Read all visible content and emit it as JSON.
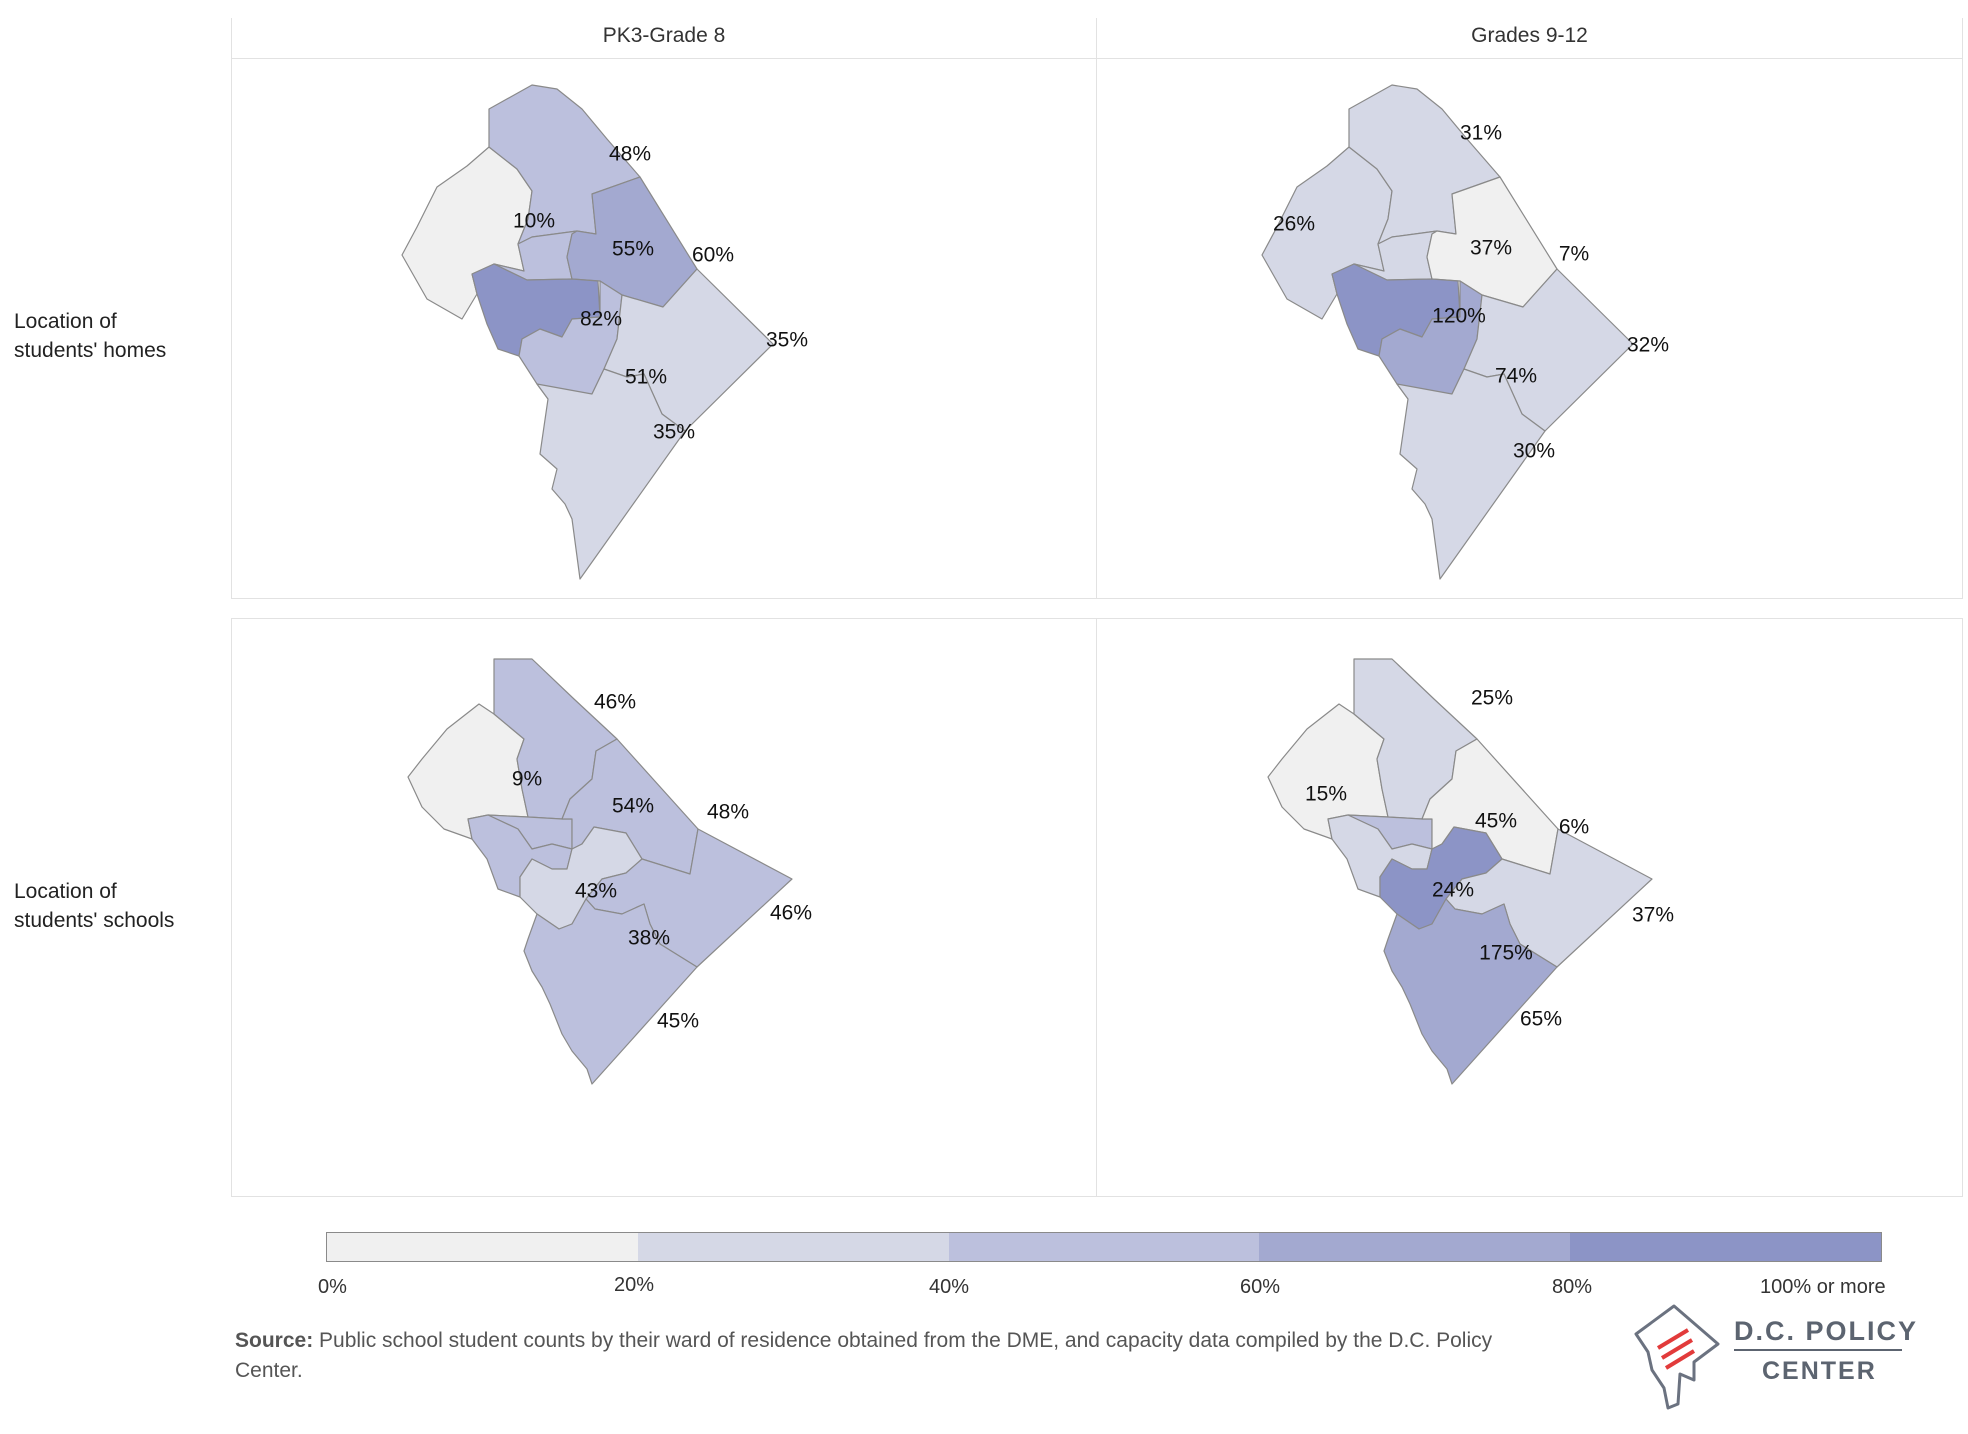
{
  "columns": [
    "PK3-Grade 8",
    "Grades 9-12"
  ],
  "rows": [
    "Location of students' homes",
    "Location of students' schools"
  ],
  "row_lines": [
    [
      "Location of",
      "students' homes"
    ],
    [
      "Location of",
      "students' schools"
    ]
  ],
  "colors": {
    "bin0": "#f0f0f0",
    "bin1": "#d5d8e6",
    "bin2": "#bcc0dd",
    "bin3": "#a3a9d0",
    "bin4": "#8c94c6",
    "border": "#8a8a8a"
  },
  "maps": [
    {
      "id": "homes-pk3-8",
      "wards": [
        {
          "ward": 3,
          "label": "10%",
          "value": 10
        },
        {
          "ward": 4,
          "label": "48%",
          "value": 48
        },
        {
          "ward": 1,
          "label": "55%",
          "value": 55
        },
        {
          "ward": 5,
          "label": "60%",
          "value": 60
        },
        {
          "ward": 2,
          "label": "82%",
          "value": 82
        },
        {
          "ward": 6,
          "label": "51%",
          "value": 51
        },
        {
          "ward": 7,
          "label": "35%",
          "value": 35
        },
        {
          "ward": 8,
          "label": "35%",
          "value": 35
        }
      ]
    },
    {
      "id": "homes-9-12",
      "wards": [
        {
          "ward": 3,
          "label": "26%",
          "value": 26
        },
        {
          "ward": 4,
          "label": "31%",
          "value": 31
        },
        {
          "ward": 1,
          "label": "37%",
          "value": 37
        },
        {
          "ward": 5,
          "label": "7%",
          "value": 7
        },
        {
          "ward": 2,
          "label": "120%",
          "value": 120
        },
        {
          "ward": 6,
          "label": "74%",
          "value": 74
        },
        {
          "ward": 7,
          "label": "32%",
          "value": 32
        },
        {
          "ward": 8,
          "label": "30%",
          "value": 30
        }
      ]
    },
    {
      "id": "schools-pk3-8",
      "wards": [
        {
          "ward": 3,
          "label": "9%",
          "value": 9
        },
        {
          "ward": 4,
          "label": "46%",
          "value": 46
        },
        {
          "ward": 1,
          "label": "54%",
          "value": 54
        },
        {
          "ward": 5,
          "label": "48%",
          "value": 48
        },
        {
          "ward": 2,
          "label": "43%",
          "value": 43
        },
        {
          "ward": 6,
          "label": "38%",
          "value": 38
        },
        {
          "ward": 7,
          "label": "46%",
          "value": 46
        },
        {
          "ward": 8,
          "label": "45%",
          "value": 45
        }
      ]
    },
    {
      "id": "schools-9-12",
      "wards": [
        {
          "ward": 3,
          "label": "15%",
          "value": 15
        },
        {
          "ward": 4,
          "label": "25%",
          "value": 25
        },
        {
          "ward": 1,
          "label": "45%",
          "value": 45
        },
        {
          "ward": 5,
          "label": "6%",
          "value": 6
        },
        {
          "ward": 2,
          "label": "24%",
          "value": 24
        },
        {
          "ward": 6,
          "label": "175%",
          "value": 175
        },
        {
          "ward": 7,
          "label": "37%",
          "value": 37
        },
        {
          "ward": 8,
          "label": "65%",
          "value": 65
        }
      ]
    }
  ],
  "legend": {
    "ticks": [
      "0%",
      "20%",
      "40%",
      "60%",
      "80%",
      "100% or more"
    ]
  },
  "source": {
    "label": "Source:",
    "text": "Public school student counts by their ward of residence obtained from the DME, and capacity data compiled by the D.C. Policy Center."
  },
  "logo": {
    "line1": "D.C. POLICY",
    "line2": "CENTER"
  }
}
